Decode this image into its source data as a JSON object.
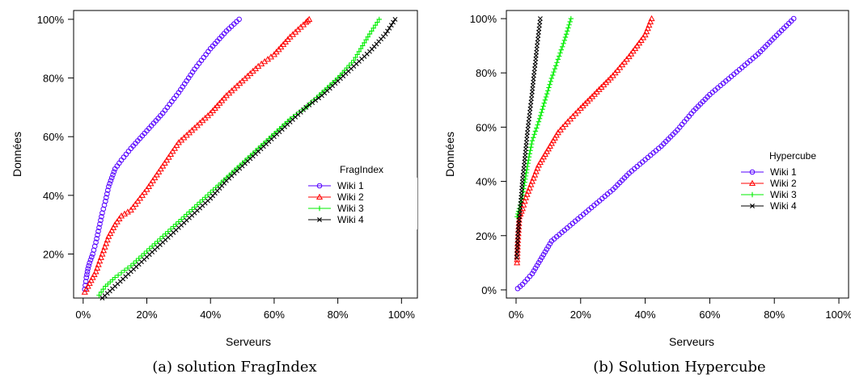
{
  "chart_data": [
    {
      "type": "scatter",
      "caption": "(a) solution FragIndex",
      "xlabel": "Serveurs",
      "ylabel": "Données",
      "xlim": [
        -0.03,
        1.05
      ],
      "ylim": [
        0.05,
        1.03
      ],
      "xticks": [
        0,
        0.2,
        0.4,
        0.6,
        0.8,
        1.0
      ],
      "xtick_labels": [
        "0%",
        "20%",
        "40%",
        "60%",
        "80%",
        "100%"
      ],
      "yticks": [
        0.2,
        0.4,
        0.6,
        0.8,
        1.0
      ],
      "ytick_labels": [
        "20%",
        "40%",
        "60%",
        "80%",
        "100%"
      ],
      "legend": {
        "title": "FragIndex",
        "position": "center-right"
      },
      "series": [
        {
          "name": "Wiki 1",
          "color": "#5500ff",
          "marker": "circle",
          "points": [
            [
              0.005,
              0.08
            ],
            [
              0.01,
              0.12
            ],
            [
              0.015,
              0.15
            ],
            [
              0.02,
              0.17
            ],
            [
              0.03,
              0.2
            ],
            [
              0.04,
              0.24
            ],
            [
              0.05,
              0.29
            ],
            [
              0.06,
              0.34
            ],
            [
              0.07,
              0.38
            ],
            [
              0.08,
              0.43
            ],
            [
              0.09,
              0.46
            ],
            [
              0.1,
              0.49
            ],
            [
              0.12,
              0.52
            ],
            [
              0.15,
              0.56
            ],
            [
              0.2,
              0.62
            ],
            [
              0.25,
              0.68
            ],
            [
              0.3,
              0.75
            ],
            [
              0.35,
              0.83
            ],
            [
              0.4,
              0.9
            ],
            [
              0.45,
              0.96
            ],
            [
              0.49,
              1.0
            ]
          ]
        },
        {
          "name": "Wiki 2",
          "color": "#ff0000",
          "marker": "triangle",
          "points": [
            [
              0.005,
              0.07
            ],
            [
              0.02,
              0.1
            ],
            [
              0.04,
              0.14
            ],
            [
              0.06,
              0.2
            ],
            [
              0.08,
              0.26
            ],
            [
              0.1,
              0.3
            ],
            [
              0.12,
              0.33
            ],
            [
              0.15,
              0.35
            ],
            [
              0.2,
              0.42
            ],
            [
              0.25,
              0.5
            ],
            [
              0.3,
              0.58
            ],
            [
              0.35,
              0.63
            ],
            [
              0.4,
              0.68
            ],
            [
              0.45,
              0.74
            ],
            [
              0.5,
              0.79
            ],
            [
              0.55,
              0.84
            ],
            [
              0.6,
              0.88
            ],
            [
              0.65,
              0.94
            ],
            [
              0.7,
              0.99
            ],
            [
              0.71,
              1.0
            ]
          ]
        },
        {
          "name": "Wiki 3",
          "color": "#00ee00",
          "marker": "plus",
          "points": [
            [
              0.05,
              0.06
            ],
            [
              0.07,
              0.09
            ],
            [
              0.1,
              0.12
            ],
            [
              0.15,
              0.16
            ],
            [
              0.2,
              0.21
            ],
            [
              0.25,
              0.26
            ],
            [
              0.3,
              0.31
            ],
            [
              0.35,
              0.36
            ],
            [
              0.4,
              0.41
            ],
            [
              0.45,
              0.46
            ],
            [
              0.5,
              0.51
            ],
            [
              0.55,
              0.56
            ],
            [
              0.6,
              0.61
            ],
            [
              0.65,
              0.66
            ],
            [
              0.7,
              0.7
            ],
            [
              0.75,
              0.75
            ],
            [
              0.8,
              0.8
            ],
            [
              0.85,
              0.86
            ],
            [
              0.9,
              0.95
            ],
            [
              0.93,
              1.0
            ]
          ]
        },
        {
          "name": "Wiki 4",
          "color": "#000000",
          "marker": "cross",
          "points": [
            [
              0.06,
              0.05
            ],
            [
              0.1,
              0.09
            ],
            [
              0.15,
              0.14
            ],
            [
              0.2,
              0.19
            ],
            [
              0.25,
              0.24
            ],
            [
              0.3,
              0.29
            ],
            [
              0.35,
              0.34
            ],
            [
              0.4,
              0.39
            ],
            [
              0.45,
              0.45
            ],
            [
              0.5,
              0.5
            ],
            [
              0.55,
              0.55
            ],
            [
              0.6,
              0.6
            ],
            [
              0.65,
              0.65
            ],
            [
              0.7,
              0.7
            ],
            [
              0.75,
              0.74
            ],
            [
              0.8,
              0.79
            ],
            [
              0.85,
              0.84
            ],
            [
              0.9,
              0.89
            ],
            [
              0.95,
              0.95
            ],
            [
              0.98,
              1.0
            ]
          ]
        }
      ]
    },
    {
      "type": "scatter",
      "caption": "(b) Solution Hypercube",
      "xlabel": "Serveurs",
      "ylabel": "Données",
      "xlim": [
        -0.03,
        1.03
      ],
      "ylim": [
        -0.03,
        1.03
      ],
      "xticks": [
        0,
        0.2,
        0.4,
        0.6,
        0.8,
        1.0
      ],
      "xtick_labels": [
        "0%",
        "20%",
        "40%",
        "60%",
        "80%",
        "100%"
      ],
      "yticks": [
        0,
        0.2,
        0.4,
        0.6,
        0.8,
        1.0
      ],
      "ytick_labels": [
        "0%",
        "20%",
        "40%",
        "60%",
        "80%",
        "100%"
      ],
      "legend": {
        "title": "Hypercube",
        "position": "center-right"
      },
      "series": [
        {
          "name": "Wiki 1",
          "color": "#5500ff",
          "marker": "circle",
          "points": [
            [
              0.005,
              0.005
            ],
            [
              0.02,
              0.02
            ],
            [
              0.05,
              0.06
            ],
            [
              0.08,
              0.12
            ],
            [
              0.11,
              0.18
            ],
            [
              0.15,
              0.22
            ],
            [
              0.2,
              0.27
            ],
            [
              0.25,
              0.32
            ],
            [
              0.3,
              0.37
            ],
            [
              0.35,
              0.43
            ],
            [
              0.4,
              0.48
            ],
            [
              0.45,
              0.53
            ],
            [
              0.5,
              0.59
            ],
            [
              0.55,
              0.66
            ],
            [
              0.6,
              0.72
            ],
            [
              0.65,
              0.77
            ],
            [
              0.7,
              0.82
            ],
            [
              0.75,
              0.87
            ],
            [
              0.8,
              0.93
            ],
            [
              0.86,
              1.0
            ]
          ]
        },
        {
          "name": "Wiki 2",
          "color": "#ff0000",
          "marker": "triangle",
          "points": [
            [
              0.003,
              0.1
            ],
            [
              0.005,
              0.17
            ],
            [
              0.01,
              0.27
            ],
            [
              0.02,
              0.3
            ],
            [
              0.03,
              0.34
            ],
            [
              0.05,
              0.4
            ],
            [
              0.07,
              0.46
            ],
            [
              0.1,
              0.52
            ],
            [
              0.13,
              0.58
            ],
            [
              0.16,
              0.62
            ],
            [
              0.2,
              0.67
            ],
            [
              0.25,
              0.73
            ],
            [
              0.3,
              0.79
            ],
            [
              0.35,
              0.86
            ],
            [
              0.4,
              0.94
            ],
            [
              0.42,
              1.0
            ]
          ]
        },
        {
          "name": "Wiki 3",
          "color": "#00ee00",
          "marker": "plus",
          "points": [
            [
              0.003,
              0.27
            ],
            [
              0.01,
              0.3
            ],
            [
              0.02,
              0.35
            ],
            [
              0.03,
              0.42
            ],
            [
              0.04,
              0.49
            ],
            [
              0.05,
              0.55
            ],
            [
              0.07,
              0.62
            ],
            [
              0.09,
              0.7
            ],
            [
              0.11,
              0.78
            ],
            [
              0.13,
              0.85
            ],
            [
              0.15,
              0.92
            ],
            [
              0.17,
              1.0
            ]
          ]
        },
        {
          "name": "Wiki 4",
          "color": "#000000",
          "marker": "cross",
          "points": [
            [
              0.002,
              0.12
            ],
            [
              0.004,
              0.16
            ],
            [
              0.006,
              0.21
            ],
            [
              0.01,
              0.27
            ],
            [
              0.015,
              0.33
            ],
            [
              0.02,
              0.41
            ],
            [
              0.025,
              0.46
            ],
            [
              0.03,
              0.52
            ],
            [
              0.035,
              0.58
            ],
            [
              0.04,
              0.63
            ],
            [
              0.045,
              0.68
            ],
            [
              0.05,
              0.73
            ],
            [
              0.055,
              0.79
            ],
            [
              0.06,
              0.84
            ],
            [
              0.065,
              0.9
            ],
            [
              0.07,
              0.95
            ],
            [
              0.075,
              1.0
            ]
          ]
        }
      ]
    }
  ]
}
